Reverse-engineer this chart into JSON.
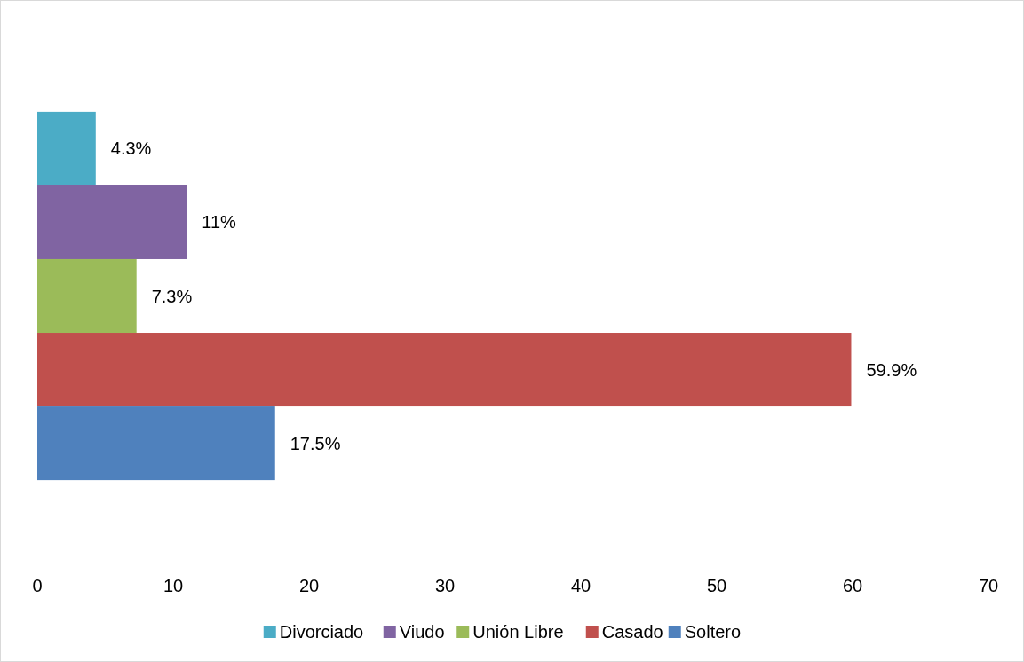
{
  "chart_data": {
    "type": "bar",
    "orientation": "horizontal",
    "categories": [
      null
    ],
    "series": [
      {
        "name": "Divorciado",
        "color": "#4bacc6",
        "values": [
          4.3
        ],
        "value_labels": [
          "4.3%"
        ]
      },
      {
        "name": "Viudo",
        "color": "#8064a2",
        "values": [
          11
        ],
        "value_labels": [
          "11%"
        ]
      },
      {
        "name": "Unión Libre",
        "color": "#9bbb59",
        "values": [
          7.3
        ],
        "value_labels": [
          "7.3%"
        ]
      },
      {
        "name": "Casado",
        "color": "#c0504d",
        "values": [
          59.9
        ],
        "value_labels": [
          "59.9%"
        ]
      },
      {
        "name": "Soltero",
        "color": "#4f81bd",
        "values": [
          17.5
        ],
        "value_labels": [
          "17.5%"
        ]
      }
    ],
    "xlim": [
      0,
      70
    ],
    "xticks": [
      0,
      10,
      20,
      30,
      40,
      50,
      60,
      70
    ],
    "legend": "bottom"
  }
}
